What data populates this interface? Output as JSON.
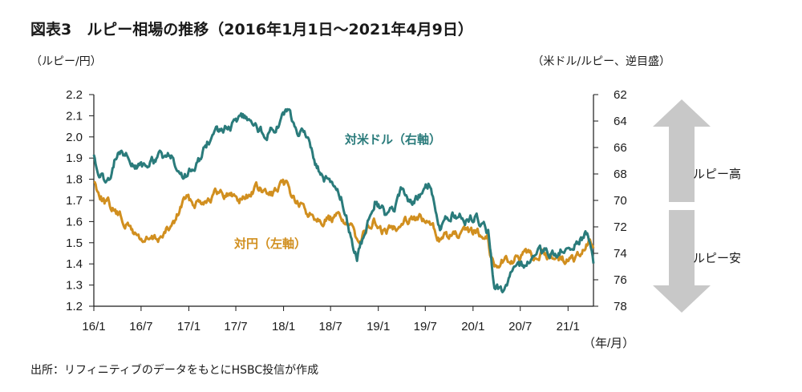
{
  "title": "図表3　ルピー相場の推移（2016年1月1日～2021年4月9日）",
  "left_unit": "（ルピー/円）",
  "right_unit": "（米ドル/ルピー、逆目盛）",
  "source": "出所：リフィニティブのデータをもとにHSBC投信が作成",
  "colors": {
    "usd": "#2a7b7b",
    "jpy": "#d18f1f",
    "arrow": "#c8c8c8",
    "axis": "#1a1a1a"
  },
  "arrows": {
    "up_label": "ルピー高",
    "down_label": "ルピー安"
  },
  "chart_data": {
    "type": "line",
    "x_tick_labels": [
      "16/1",
      "16/7",
      "17/1",
      "17/7",
      "18/1",
      "18/7",
      "19/1",
      "19/7",
      "20/1",
      "20/7",
      "21/1"
    ],
    "x_unit_label": "（年/月）",
    "y_left": {
      "ticks": [
        "2.2",
        "2.1",
        "2.0",
        "1.9",
        "1.8",
        "1.7",
        "1.6",
        "1.5",
        "1.4",
        "1.3",
        "1.2"
      ],
      "range": [
        1.2,
        2.2
      ]
    },
    "y_right": {
      "ticks": [
        "62",
        "64",
        "66",
        "68",
        "70",
        "72",
        "74",
        "76",
        "78"
      ],
      "range": [
        62,
        78
      ],
      "inverted": true
    },
    "series": [
      {
        "name": "対米ドル（右軸）",
        "axis": "right",
        "points": [
          [
            "2016-01-01",
            66.5
          ],
          [
            "2016-01-25",
            68.2
          ],
          [
            "2016-02-26",
            68.6
          ],
          [
            "2016-03-31",
            66.3
          ],
          [
            "2016-05-15",
            66.9
          ],
          [
            "2016-07-01",
            67.6
          ],
          [
            "2016-09-01",
            66.8
          ],
          [
            "2016-11-01",
            66.7
          ],
          [
            "2016-11-25",
            68.3
          ],
          [
            "2017-01-01",
            67.9
          ],
          [
            "2017-02-15",
            66.9
          ],
          [
            "2017-04-01",
            64.9
          ],
          [
            "2017-06-01",
            64.5
          ],
          [
            "2017-08-01",
            63.9
          ],
          [
            "2017-09-15",
            64.2
          ],
          [
            "2017-10-15",
            65.0
          ],
          [
            "2017-12-01",
            64.6
          ],
          [
            "2018-01-15",
            63.5
          ],
          [
            "2018-03-01",
            65.0
          ],
          [
            "2018-04-01",
            65.3
          ],
          [
            "2018-05-10",
            67.5
          ],
          [
            "2018-06-30",
            68.8
          ],
          [
            "2018-08-15",
            70.0
          ],
          [
            "2018-10-10",
            74.3
          ],
          [
            "2018-11-15",
            72.2
          ],
          [
            "2018-12-20",
            69.8
          ],
          [
            "2019-01-31",
            71.2
          ],
          [
            "2019-03-01",
            70.8
          ],
          [
            "2019-04-01",
            69.1
          ],
          [
            "2019-05-15",
            70.3
          ],
          [
            "2019-06-15",
            69.4
          ],
          [
            "2019-07-15",
            68.8
          ],
          [
            "2019-08-31",
            72.0
          ],
          [
            "2019-10-15",
            70.9
          ],
          [
            "2019-12-01",
            71.5
          ],
          [
            "2020-01-15",
            71.1
          ],
          [
            "2020-03-01",
            72.4
          ],
          [
            "2020-03-24",
            76.5
          ],
          [
            "2020-04-20",
            76.7
          ],
          [
            "2020-06-01",
            75.5
          ],
          [
            "2020-07-15",
            75.0
          ],
          [
            "2020-09-01",
            73.5
          ],
          [
            "2020-11-01",
            74.2
          ],
          [
            "2021-01-01",
            73.3
          ],
          [
            "2021-02-15",
            72.8
          ],
          [
            "2021-03-20",
            72.5
          ],
          [
            "2021-04-09",
            74.7
          ]
        ]
      },
      {
        "name": "対円（左軸）",
        "axis": "left",
        "points": [
          [
            "2016-01-01",
            1.79
          ],
          [
            "2016-02-10",
            1.7
          ],
          [
            "2016-03-15",
            1.66
          ],
          [
            "2016-04-20",
            1.61
          ],
          [
            "2016-06-10",
            1.54
          ],
          [
            "2016-07-10",
            1.51
          ],
          [
            "2016-08-20",
            1.51
          ],
          [
            "2016-10-01",
            1.54
          ],
          [
            "2016-11-10",
            1.6
          ],
          [
            "2016-12-15",
            1.71
          ],
          [
            "2017-01-15",
            1.69
          ],
          [
            "2017-03-01",
            1.71
          ],
          [
            "2017-04-15",
            1.73
          ],
          [
            "2017-06-01",
            1.73
          ],
          [
            "2017-07-15",
            1.71
          ],
          [
            "2017-08-15",
            1.72
          ],
          [
            "2017-09-15",
            1.76
          ],
          [
            "2017-11-01",
            1.72
          ],
          [
            "2017-12-10",
            1.74
          ],
          [
            "2018-01-10",
            1.77
          ],
          [
            "2018-02-15",
            1.7
          ],
          [
            "2018-03-30",
            1.64
          ],
          [
            "2018-05-15",
            1.63
          ],
          [
            "2018-07-01",
            1.61
          ],
          [
            "2018-08-15",
            1.62
          ],
          [
            "2018-10-10",
            1.52
          ],
          [
            "2018-11-15",
            1.56
          ],
          [
            "2018-12-15",
            1.6
          ],
          [
            "2019-01-10",
            1.55
          ],
          [
            "2019-02-15",
            1.56
          ],
          [
            "2019-04-01",
            1.61
          ],
          [
            "2019-05-15",
            1.63
          ],
          [
            "2019-07-10",
            1.59
          ],
          [
            "2019-08-30",
            1.52
          ],
          [
            "2019-10-15",
            1.53
          ],
          [
            "2019-12-01",
            1.53
          ],
          [
            "2020-01-15",
            1.55
          ],
          [
            "2020-02-25",
            1.54
          ],
          [
            "2020-03-10",
            1.44
          ],
          [
            "2020-03-24",
            1.39
          ],
          [
            "2020-04-20",
            1.42
          ],
          [
            "2020-06-01",
            1.42
          ],
          [
            "2020-07-15",
            1.43
          ],
          [
            "2020-09-01",
            1.44
          ],
          [
            "2020-11-01",
            1.44
          ],
          [
            "2021-01-01",
            1.41
          ],
          [
            "2021-02-10",
            1.43
          ],
          [
            "2021-03-10",
            1.46
          ],
          [
            "2021-03-25",
            1.5
          ],
          [
            "2021-04-09",
            1.45
          ]
        ]
      }
    ]
  }
}
